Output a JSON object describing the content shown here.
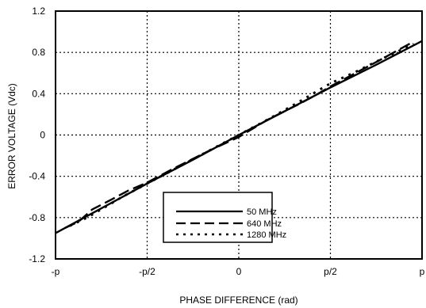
{
  "chart_data": {
    "type": "line",
    "xlabel": "PHASE DIFFERENCE (rad)",
    "ylabel": "ERROR VOLTAGE (Vdc)",
    "xlim": [
      -3.14159,
      3.14159
    ],
    "ylim": [
      -1.2,
      1.2
    ],
    "x_ticks": [
      {
        "value": -3.14159,
        "label": "-p"
      },
      {
        "value": -1.5708,
        "label": "-p/2"
      },
      {
        "value": 0,
        "label": "0"
      },
      {
        "value": 1.5708,
        "label": "p/2"
      },
      {
        "value": 3.14159,
        "label": "p"
      }
    ],
    "y_ticks": [
      {
        "value": 1.2,
        "label": "1.2"
      },
      {
        "value": 0.8,
        "label": "0.8"
      },
      {
        "value": 0.4,
        "label": "0.4"
      },
      {
        "value": 0,
        "label": "0"
      },
      {
        "value": -0.4,
        "label": "-0.4"
      },
      {
        "value": -0.8,
        "label": "-0.8"
      },
      {
        "value": -1.2,
        "label": "-1.2"
      }
    ],
    "grid": true,
    "legend_position": "lower-right",
    "series": [
      {
        "name": "50 MHz",
        "style": "solid",
        "x": [
          -3.14159,
          -2.356,
          -1.5708,
          -0.7854,
          0,
          0.7854,
          1.5708,
          2.356,
          3.14159
        ],
        "y": [
          -0.95,
          -0.71,
          -0.47,
          -0.24,
          0.0,
          0.23,
          0.46,
          0.68,
          0.91
        ]
      },
      {
        "name": "640 MHz",
        "style": "dashed",
        "x": [
          -2.98,
          -2.75,
          -2.51,
          -2.2,
          -1.9,
          -1.5708,
          -1.1,
          -0.5,
          0,
          0.5,
          1.0,
          1.3,
          1.5708,
          2.0,
          2.5,
          2.95
        ],
        "y": [
          -0.9,
          -0.84,
          -0.72,
          -0.63,
          -0.54,
          -0.46,
          -0.32,
          -0.15,
          -0.02,
          0.15,
          0.29,
          0.38,
          0.47,
          0.6,
          0.75,
          0.89
        ]
      },
      {
        "name": "1280 MHz",
        "style": "dotted",
        "x": [
          -2.9,
          -2.6,
          -2.3,
          -2.0,
          -1.5708,
          -1.0,
          -0.4,
          0,
          0.5,
          1.0,
          1.3,
          1.5708,
          2.0,
          2.5,
          3.0
        ],
        "y": [
          -0.88,
          -0.8,
          -0.7,
          -0.6,
          -0.47,
          -0.3,
          -0.12,
          0.0,
          0.15,
          0.31,
          0.41,
          0.5,
          0.61,
          0.75,
          0.88
        ]
      }
    ]
  }
}
